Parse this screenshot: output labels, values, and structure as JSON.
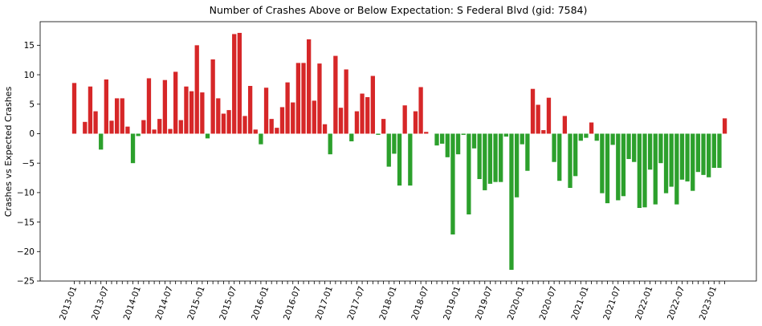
{
  "chart_data": {
    "type": "bar",
    "title": "Number of Crashes Above or Below Expectation: S Federal Blvd (gid: 7584)",
    "xlabel": "",
    "ylabel": "Crashes vs Expected Crashes",
    "ylim": [
      -25,
      19
    ],
    "yticks": [
      -25,
      -20,
      -15,
      -10,
      -5,
      0,
      5,
      10,
      15
    ],
    "grid": false,
    "start_month": "2013-01",
    "positive_color": "#d62728",
    "negative_color": "#2ca02c",
    "xtick_labels": [
      "2013-01",
      "2013-07",
      "2014-01",
      "2014-07",
      "2015-01",
      "2015-07",
      "2016-01",
      "2016-07",
      "2017-01",
      "2017-07",
      "2018-01",
      "2018-07",
      "2019-01",
      "2019-07",
      "2020-01",
      "2020-07",
      "2021-01",
      "2021-07",
      "2022-01",
      "2022-07",
      "2023-01"
    ],
    "values": [
      8.6,
      0.0,
      2.0,
      8.0,
      3.8,
      -2.7,
      9.2,
      2.2,
      6.0,
      6.0,
      1.2,
      -5.0,
      -0.4,
      2.3,
      9.4,
      0.7,
      2.5,
      9.1,
      0.8,
      10.5,
      2.3,
      8.0,
      7.2,
      15.0,
      7.0,
      -0.8,
      12.6,
      6.0,
      3.4,
      4.0,
      16.9,
      17.1,
      3.0,
      8.1,
      0.7,
      -1.8,
      7.8,
      2.5,
      1.0,
      4.5,
      8.7,
      5.3,
      12.0,
      12.0,
      16.0,
      5.6,
      11.9,
      1.6,
      -3.5,
      13.2,
      4.4,
      10.9,
      -1.3,
      3.8,
      6.8,
      6.2,
      9.8,
      -0.2,
      2.5,
      -5.6,
      -3.4,
      -8.8,
      4.8,
      -8.8,
      3.8,
      7.9,
      0.3,
      0.0,
      -2.0,
      -1.7,
      -4.0,
      -17.1,
      -3.5,
      -0.2,
      -13.7,
      -2.5,
      -7.7,
      -9.6,
      -8.5,
      -8.2,
      -8.2,
      -0.5,
      -23.1,
      -10.8,
      -1.8,
      -6.3,
      7.6,
      4.9,
      0.6,
      6.1,
      -4.8,
      -8.0,
      3.0,
      -9.2,
      -7.2,
      -1.2,
      -0.7,
      1.9,
      -1.2,
      -10.1,
      -11.8,
      -1.9,
      -11.3,
      -10.6,
      -4.3,
      -4.8,
      -12.6,
      -12.5,
      -6.1,
      -12.0,
      -5.0,
      -10.1,
      -9.0,
      -12.0,
      -7.8,
      -8.1,
      -9.7,
      -6.5,
      -7.0,
      -7.4,
      -5.8,
      -5.8,
      2.6
    ]
  }
}
